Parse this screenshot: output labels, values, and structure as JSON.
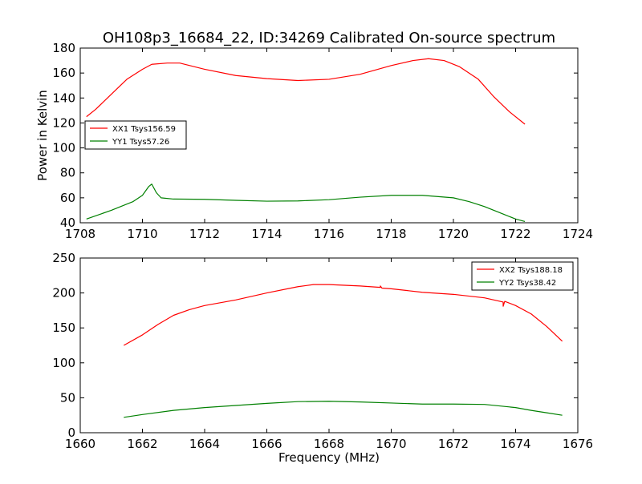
{
  "title": "OH108p3_16684_22, ID:34269 Calibrated On-source spectrum",
  "ylabel": "Power in Kelvin",
  "xlabel": "Frequency (MHz)",
  "colors": {
    "red": "#ff0000",
    "green": "#008000",
    "axis": "#000000"
  },
  "chart_data": [
    {
      "type": "line",
      "xlim": [
        1708,
        1724
      ],
      "ylim": [
        40,
        180
      ],
      "xticks": [
        1708,
        1710,
        1712,
        1714,
        1716,
        1718,
        1720,
        1722,
        1724
      ],
      "yticks": [
        40,
        60,
        80,
        100,
        120,
        140,
        160,
        180
      ],
      "legend": "center-left",
      "series": [
        {
          "name": "XX1 Tsys156.59",
          "color": "#ff0000",
          "points": [
            [
              1708.2,
              125
            ],
            [
              1708.5,
              131
            ],
            [
              1709,
              143
            ],
            [
              1709.5,
              155
            ],
            [
              1710,
              163
            ],
            [
              1710.3,
              167
            ],
            [
              1710.8,
              168
            ],
            [
              1711.2,
              168
            ],
            [
              1712,
              163
            ],
            [
              1713,
              158
            ],
            [
              1714,
              155.5
            ],
            [
              1715,
              154
            ],
            [
              1716,
              155
            ],
            [
              1717,
              159
            ],
            [
              1718,
              166
            ],
            [
              1718.7,
              170
            ],
            [
              1719.2,
              171.5
            ],
            [
              1719.7,
              170
            ],
            [
              1720.2,
              165
            ],
            [
              1720.8,
              155
            ],
            [
              1721.3,
              141
            ],
            [
              1721.8,
              129
            ],
            [
              1722.3,
              119
            ]
          ]
        },
        {
          "name": "YY1 Tsys57.26",
          "color": "#008000",
          "points": [
            [
              1708.2,
              43
            ],
            [
              1709,
              50
            ],
            [
              1709.7,
              57
            ],
            [
              1710,
              62
            ],
            [
              1710.2,
              69
            ],
            [
              1710.3,
              71
            ],
            [
              1710.45,
              64
            ],
            [
              1710.6,
              60
            ],
            [
              1711,
              59
            ],
            [
              1712,
              58.8
            ],
            [
              1713,
              58
            ],
            [
              1714,
              57.3
            ],
            [
              1715,
              57.5
            ],
            [
              1716,
              58.5
            ],
            [
              1717,
              60.5
            ],
            [
              1718,
              62
            ],
            [
              1719,
              62
            ],
            [
              1720,
              60
            ],
            [
              1720.5,
              57
            ],
            [
              1721,
              53
            ],
            [
              1721.5,
              48
            ],
            [
              1722,
              43
            ],
            [
              1722.3,
              41
            ]
          ]
        }
      ]
    },
    {
      "type": "line",
      "xlim": [
        1660,
        1676
      ],
      "ylim": [
        0,
        250
      ],
      "xticks": [
        1660,
        1662,
        1664,
        1666,
        1668,
        1670,
        1672,
        1674,
        1676
      ],
      "yticks": [
        0,
        50,
        100,
        150,
        200,
        250
      ],
      "legend": "top-right",
      "series": [
        {
          "name": "XX2 Tsys188.18",
          "color": "#ff0000",
          "points": [
            [
              1661.4,
              125
            ],
            [
              1662,
              140
            ],
            [
              1662.5,
              155
            ],
            [
              1663,
              168
            ],
            [
              1663.5,
              176
            ],
            [
              1664,
              182
            ],
            [
              1665,
              190
            ],
            [
              1666,
              200
            ],
            [
              1667,
              209
            ],
            [
              1667.5,
              212
            ],
            [
              1668,
              212
            ],
            [
              1669,
              210
            ],
            [
              1669.65,
              208
            ],
            [
              1669.65,
              210
            ],
            [
              1669.7,
              207
            ],
            [
              1670,
              206
            ],
            [
              1671,
              201
            ],
            [
              1672,
              198
            ],
            [
              1673,
              193
            ],
            [
              1673.6,
              187
            ],
            [
              1673.6,
              181
            ],
            [
              1673.65,
              188
            ],
            [
              1674,
              182
            ],
            [
              1674.5,
              170
            ],
            [
              1675,
              152
            ],
            [
              1675.5,
              131
            ]
          ]
        },
        {
          "name": "YY2 Tsys38.42",
          "color": "#008000",
          "points": [
            [
              1661.4,
              22
            ],
            [
              1662,
              26
            ],
            [
              1663,
              32
            ],
            [
              1664,
              36
            ],
            [
              1665,
              39
            ],
            [
              1666,
              42
            ],
            [
              1667,
              44.5
            ],
            [
              1668,
              45
            ],
            [
              1669,
              44
            ],
            [
              1670,
              42.5
            ],
            [
              1671,
              41
            ],
            [
              1672,
              41
            ],
            [
              1673,
              40.5
            ],
            [
              1674,
              36
            ],
            [
              1674.5,
              32
            ],
            [
              1675,
              28.5
            ],
            [
              1675.5,
              25
            ]
          ]
        }
      ]
    }
  ]
}
